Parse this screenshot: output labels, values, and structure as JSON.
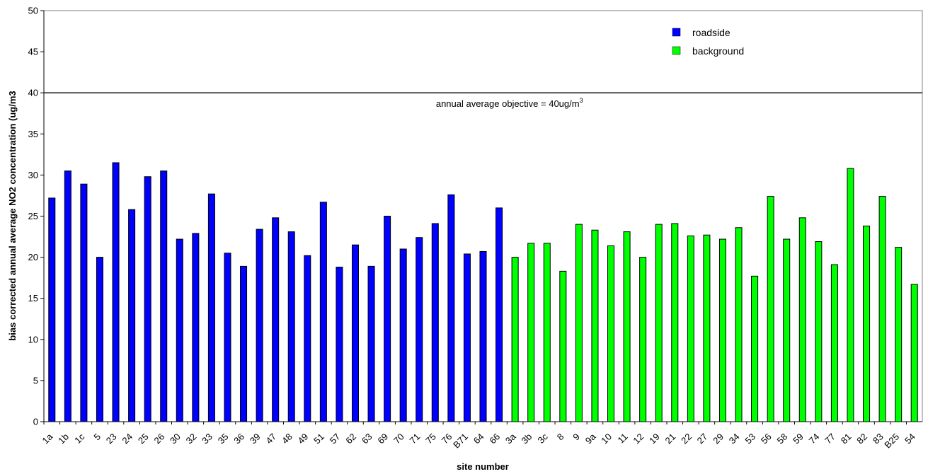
{
  "chart_data": {
    "type": "bar",
    "xlabel": "site number",
    "ylabel": "bias corrected annual average NO2 concentration (ug/m3",
    "ylim": [
      0,
      50
    ],
    "yticks": [
      0,
      5,
      10,
      15,
      20,
      25,
      30,
      35,
      40,
      45,
      50
    ],
    "grid": false,
    "legend_position": "top-right",
    "categories": [
      "1a",
      "1b",
      "1c",
      "5",
      "23",
      "24",
      "25",
      "26",
      "30",
      "32",
      "33",
      "35",
      "36",
      "39",
      "47",
      "48",
      "49",
      "51",
      "57",
      "62",
      "63",
      "69",
      "70",
      "71",
      "75",
      "76",
      "B71",
      "64",
      "66",
      "3a",
      "3b",
      "3c",
      "8",
      "9",
      "9a",
      "10",
      "11",
      "12",
      "19",
      "21",
      "22",
      "27",
      "29",
      "34",
      "53",
      "56",
      "58",
      "59",
      "74",
      "77",
      "81",
      "82",
      "83",
      "B25",
      "54"
    ],
    "values": [
      27.2,
      30.5,
      28.9,
      20.0,
      31.5,
      25.8,
      29.8,
      30.5,
      22.2,
      22.9,
      27.7,
      20.5,
      18.9,
      23.4,
      24.8,
      23.1,
      20.2,
      26.7,
      18.8,
      21.5,
      18.9,
      25.0,
      21.0,
      22.4,
      24.1,
      27.6,
      20.4,
      20.7,
      26.0,
      20.0,
      21.7,
      21.7,
      18.3,
      24.0,
      23.3,
      21.4,
      23.1,
      20.0,
      24.0,
      24.1,
      22.6,
      22.7,
      22.2,
      23.6,
      17.7,
      27.4,
      22.2,
      24.8,
      21.9,
      19.1,
      30.8,
      23.8,
      27.4,
      21.2,
      16.7
    ],
    "groups": [
      "roadside",
      "roadside",
      "roadside",
      "roadside",
      "roadside",
      "roadside",
      "roadside",
      "roadside",
      "roadside",
      "roadside",
      "roadside",
      "roadside",
      "roadside",
      "roadside",
      "roadside",
      "roadside",
      "roadside",
      "roadside",
      "roadside",
      "roadside",
      "roadside",
      "roadside",
      "roadside",
      "roadside",
      "roadside",
      "roadside",
      "roadside",
      "roadside",
      "roadside",
      "background",
      "background",
      "background",
      "background",
      "background",
      "background",
      "background",
      "background",
      "background",
      "background",
      "background",
      "background",
      "background",
      "background",
      "background",
      "background",
      "background",
      "background",
      "background",
      "background",
      "background",
      "background",
      "background",
      "background",
      "background",
      "background"
    ],
    "series": [
      {
        "name": "roadside",
        "color": "#0000ff"
      },
      {
        "name": "background",
        "color": "#00ff00"
      }
    ],
    "reference_line": {
      "value": 40,
      "label": "annual average objective = 40ug/m",
      "label_superscript": "3"
    }
  }
}
